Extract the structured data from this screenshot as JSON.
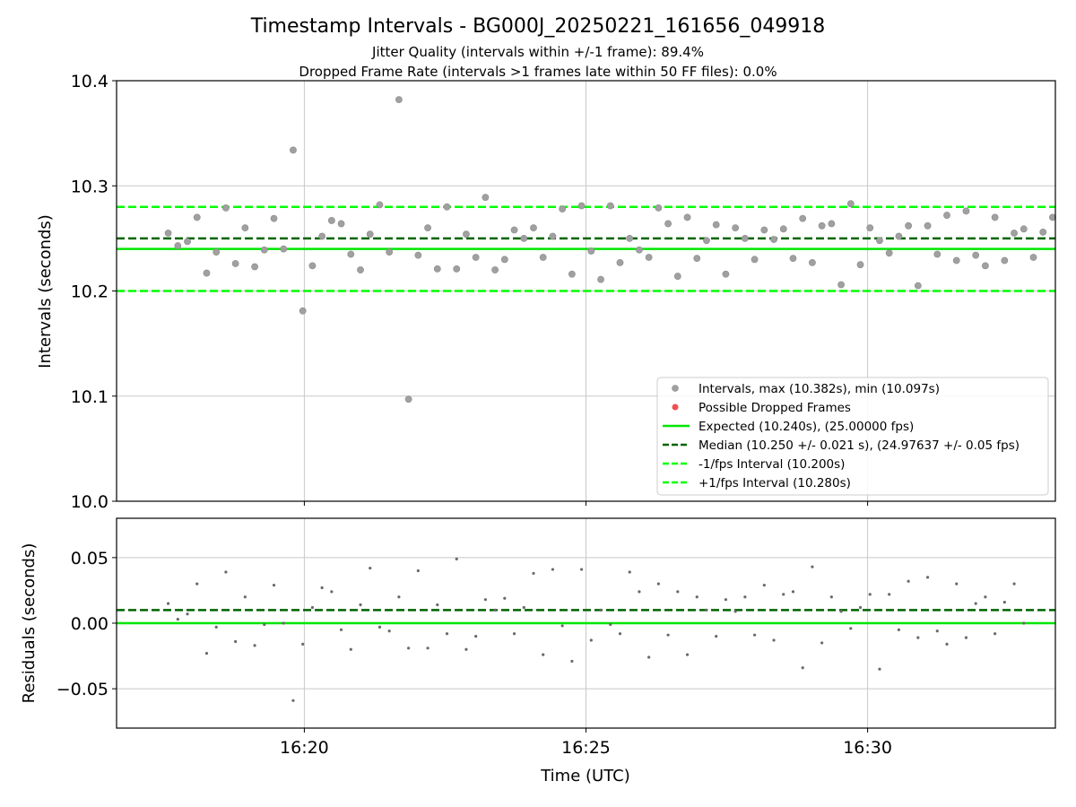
{
  "header": {
    "title": "Timestamp Intervals - BG000J_20250221_161656_049918",
    "subtitle_1": "Jitter Quality (intervals within +/-1 frame): 89.4%",
    "subtitle_2": "Dropped Frame Rate (intervals >1 frames late within 50 FF files): 0.0%"
  },
  "colors": {
    "points": "#a0a0a0",
    "dropped": "#f05050",
    "expected": "#00e600",
    "median": "#006400",
    "band": "#00ff00",
    "grid": "#c8c8c8"
  },
  "chart_data": [
    {
      "type": "scatter",
      "xlabel": "",
      "ylabel": "Intervals (seconds)",
      "xlim": [
        "16:16:40",
        "16:33:20"
      ],
      "ylim": [
        10.0,
        10.4
      ],
      "yticks": [
        "10.0",
        "10.1",
        "10.2",
        "10.3",
        "10.4"
      ],
      "grid": true,
      "legend_position": "lower-right",
      "legend": [
        {
          "label": "Intervals, max (10.382s), min (10.097s)",
          "kind": "point",
          "color": "#a0a0a0"
        },
        {
          "label": "Possible Dropped Frames",
          "kind": "point",
          "color": "#f05050"
        },
        {
          "label": "Expected (10.240s), (25.00000 fps)",
          "kind": "solid",
          "color": "#00e600"
        },
        {
          "label": "Median (10.250 +/- 0.021 s), (24.97637 +/- 0.05 fps)",
          "kind": "dashed",
          "color": "#006400"
        },
        {
          "label": "-1/fps Interval (10.200s)",
          "kind": "dashed",
          "color": "#00ff00"
        },
        {
          "label": "+1/fps Interval (10.280s)",
          "kind": "dashed",
          "color": "#00ff00"
        }
      ],
      "hlines": [
        {
          "y": 10.24,
          "style": "solid",
          "color": "#00e600"
        },
        {
          "y": 10.25,
          "style": "dashed",
          "color": "#006400"
        },
        {
          "y": 10.2,
          "style": "dashed",
          "color": "#00ff00"
        },
        {
          "y": 10.28,
          "style": "dashed",
          "color": "#00ff00"
        }
      ],
      "series": [
        {
          "values": [
            10.255,
            10.243,
            10.247,
            10.27,
            10.217,
            10.237,
            10.279,
            10.226,
            10.26,
            10.223,
            10.239,
            10.269,
            10.24,
            10.334,
            10.181,
            10.224,
            10.252,
            10.267,
            10.264,
            10.235,
            10.22,
            10.254,
            10.282,
            10.237,
            10.382,
            10.097,
            10.234,
            10.26,
            10.221,
            10.28,
            10.221,
            10.254,
            10.232,
            10.289,
            10.22,
            10.23,
            10.258,
            10.25,
            10.26,
            10.232,
            10.252,
            10.278,
            10.216,
            10.281,
            10.238,
            10.211,
            10.281,
            10.227,
            10.25,
            10.239,
            10.232,
            10.279,
            10.264,
            10.214,
            10.27,
            10.231,
            10.248,
            10.263,
            10.216,
            10.26,
            10.25,
            10.23,
            10.258,
            10.249,
            10.259,
            10.231,
            10.269,
            10.227,
            10.262,
            10.264,
            10.206,
            10.283,
            10.225,
            10.26,
            10.248,
            10.236,
            10.252,
            10.262,
            10.205,
            10.262,
            10.235,
            10.272,
            10.229,
            10.276,
            10.234,
            10.224,
            10.27,
            10.229,
            10.255,
            10.259,
            10.232,
            10.256,
            10.27,
            10.24
          ]
        }
      ]
    },
    {
      "type": "scatter",
      "xlabel": "Time (UTC)",
      "ylabel": "Residuals (seconds)",
      "xlim": [
        "16:16:40",
        "16:33:20"
      ],
      "ylim": [
        -0.08,
        0.08
      ],
      "xticks": [
        "16:20",
        "16:25",
        "16:30"
      ],
      "yticks": [
        "−0.05",
        "0.00",
        "0.05"
      ],
      "grid": true,
      "hlines": [
        {
          "y": 0.0,
          "style": "solid",
          "color": "#00e600"
        },
        {
          "y": 0.01,
          "style": "dashed",
          "color": "#006400"
        }
      ],
      "series": [
        {
          "values": [
            0.015,
            0.003,
            0.007,
            0.03,
            -0.023,
            -0.003,
            0.039,
            -0.014,
            0.02,
            -0.017,
            -0.001,
            0.029,
            0.0,
            -0.059,
            -0.016,
            0.012,
            0.027,
            0.024,
            -0.005,
            -0.02,
            0.014,
            0.042,
            -0.003,
            -0.006,
            0.02,
            -0.019,
            0.04,
            -0.019,
            0.014,
            -0.008,
            0.049,
            -0.02,
            -0.01,
            0.018,
            0.01,
            0.019,
            -0.008,
            0.012,
            0.038,
            -0.024,
            0.041,
            -0.002,
            -0.029,
            0.041,
            -0.013,
            0.01,
            -0.001,
            -0.008,
            0.039,
            0.024,
            -0.026,
            0.03,
            -0.009,
            0.024,
            -0.024,
            0.02,
            0.01,
            -0.01,
            0.018,
            0.009,
            0.02,
            -0.009,
            0.029,
            -0.013,
            0.022,
            0.024,
            -0.034,
            0.043,
            -0.015,
            0.02,
            0.009,
            -0.004,
            0.012,
            0.022,
            -0.035,
            0.022,
            -0.005,
            0.032,
            -0.011,
            0.035,
            -0.006,
            -0.016,
            0.03,
            -0.011,
            0.015,
            0.02,
            -0.008,
            0.016,
            0.03,
            0.0
          ]
        }
      ]
    }
  ]
}
